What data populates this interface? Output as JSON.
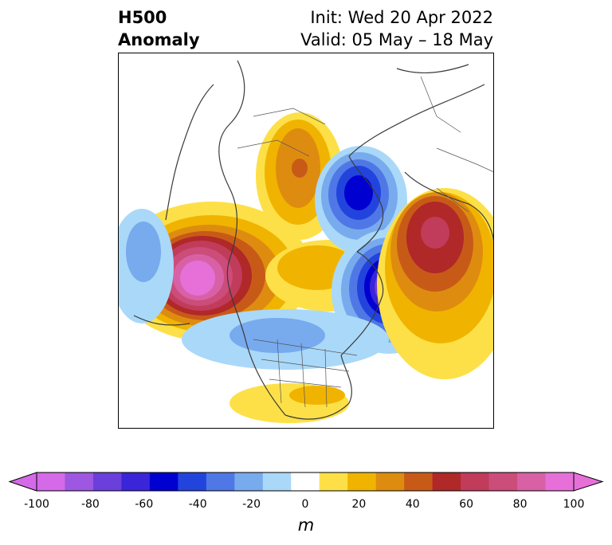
{
  "header": {
    "title_line1": "H500",
    "title_line2": "Anomaly",
    "init": "Init: Wed 20 Apr 2022",
    "valid": "Valid: 05 May – 18 May"
  },
  "colorbar": {
    "unit": "m",
    "ticks": [
      "-100",
      "-80",
      "-60",
      "-40",
      "-20",
      "0",
      "20",
      "40",
      "60",
      "80",
      "100"
    ],
    "tick_values": [
      -100,
      -80,
      -60,
      -40,
      -20,
      0,
      20,
      40,
      60,
      80,
      100
    ],
    "levels": [
      -100,
      -90,
      -80,
      -70,
      -60,
      -50,
      -40,
      -30,
      -20,
      -10,
      10,
      20,
      30,
      40,
      50,
      60,
      70,
      80,
      90,
      100
    ],
    "colors": [
      "#d46ae8",
      "#9d57e0",
      "#6b3fdc",
      "#3a25d8",
      "#0000d0",
      "#2244dd",
      "#4f78e6",
      "#78aaee",
      "#aad8f8",
      "#ffffff",
      "#fde047",
      "#f0b400",
      "#de8c10",
      "#c85a18",
      "#b02828",
      "#c13c5a",
      "#cc4c7a",
      "#d861a6",
      "#e670d8"
    ],
    "extend": "both"
  },
  "map": {
    "projection": "north polar stereographic",
    "features": [
      "coastlines",
      "country borders",
      "US state borders"
    ],
    "anomaly_centers": [
      {
        "region": "NE Pacific / Gulf of Alaska",
        "sign": "positive",
        "max_m": 90
      },
      {
        "region": "Central North Pacific",
        "sign": "negative",
        "min_m": -30
      },
      {
        "region": "Arctic / Kara Sea",
        "sign": "negative",
        "min_m": -60
      },
      {
        "region": "North Atlantic / Greenland east",
        "sign": "negative",
        "min_m": -70
      },
      {
        "region": "Europe / Scandinavia",
        "sign": "positive",
        "max_m": 60
      },
      {
        "region": "East Siberia",
        "sign": "positive",
        "max_m": 50
      },
      {
        "region": "Central / Eastern US",
        "sign": "negative",
        "min_m": -40
      },
      {
        "region": "Southeast US / Gulf",
        "sign": "positive",
        "max_m": 20
      }
    ]
  }
}
